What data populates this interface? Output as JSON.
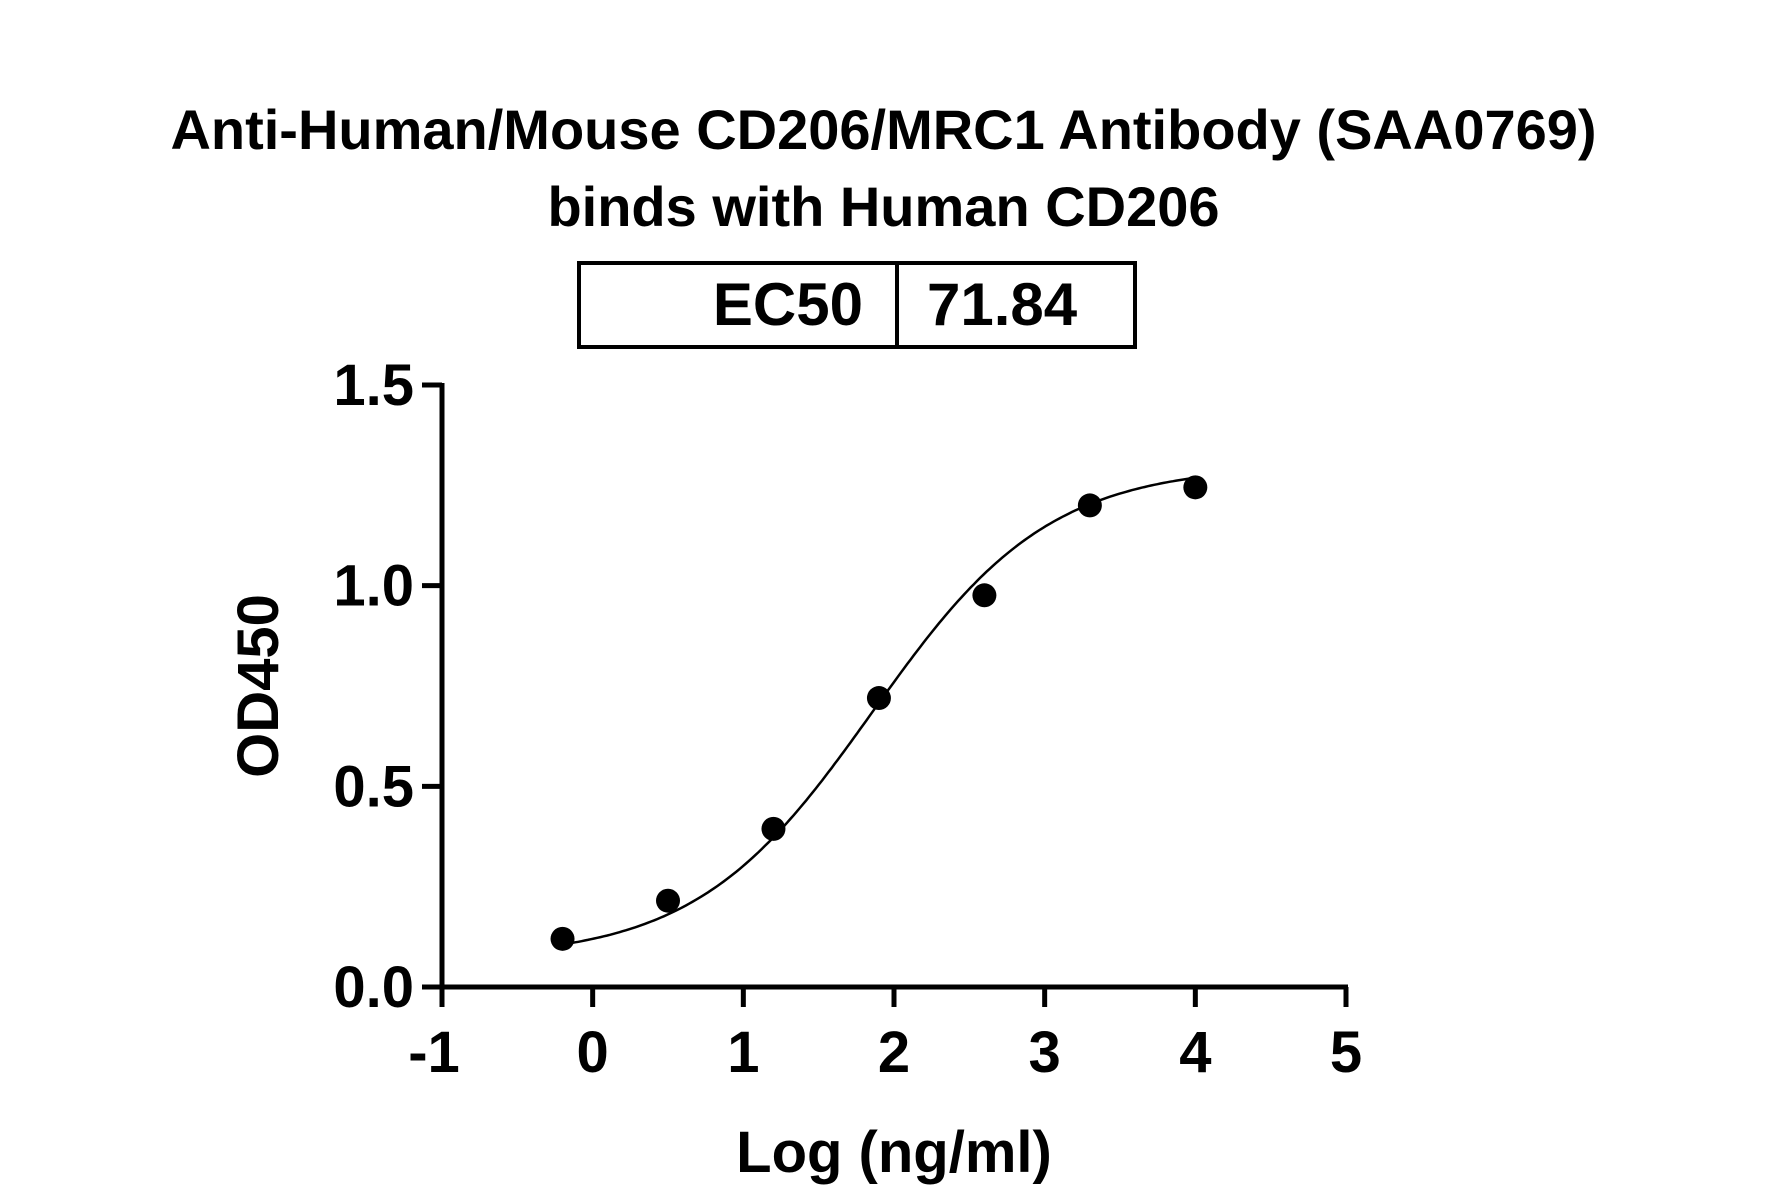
{
  "chart_data": {
    "type": "scatter",
    "title": "Anti-Human/Mouse CD206/MRC1 Antibody (SAA0769)",
    "subtitle": "binds with Human CD206",
    "xlabel": "Log (ng/ml)",
    "ylabel": "OD450",
    "xlim": [
      -1,
      5
    ],
    "ylim": [
      0,
      1.5
    ],
    "xticks": [
      "-1",
      "0",
      "1",
      "2",
      "3",
      "4",
      "5"
    ],
    "yticks": [
      "0.0",
      "0.5",
      "1.0",
      "1.5"
    ],
    "grid": false,
    "fit": "four-parameter logistic curve",
    "x": [
      -0.2,
      0.5,
      1.2,
      1.9,
      2.6,
      3.3,
      4.0
    ],
    "y": [
      0.12,
      0.215,
      0.394,
      0.72,
      0.976,
      1.2,
      1.245
    ],
    "marker_color": "#000000",
    "ec50_table": {
      "label": "EC50",
      "value": "71.84"
    }
  }
}
